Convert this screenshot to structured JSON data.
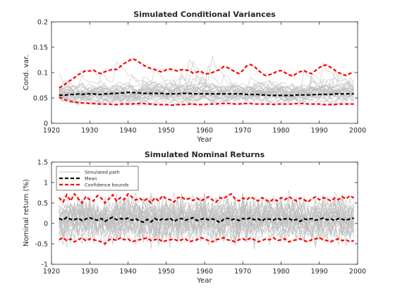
{
  "chart_data": [
    {
      "type": "line",
      "title": "Simulated Conditional Variances",
      "xlabel": "Year",
      "ylabel": "Cond. var.",
      "xlim": [
        1920,
        2000
      ],
      "ylim": [
        0,
        0.2
      ],
      "xticks": [
        1920,
        1930,
        1940,
        1950,
        1960,
        1970,
        1980,
        1990,
        2000
      ],
      "yticks": [
        0,
        0.05,
        0.1,
        0.15,
        0.2
      ],
      "ytick_labels": [
        "0",
        "0.05",
        "0.1",
        "0.15",
        "0.2"
      ],
      "grid": false,
      "x": [
        1922,
        1923,
        1924,
        1925,
        1926,
        1927,
        1928,
        1929,
        1930,
        1931,
        1932,
        1933,
        1934,
        1935,
        1936,
        1937,
        1938,
        1939,
        1940,
        1941,
        1942,
        1943,
        1944,
        1945,
        1946,
        1947,
        1948,
        1949,
        1950,
        1951,
        1952,
        1953,
        1954,
        1955,
        1956,
        1957,
        1958,
        1959,
        1960,
        1961,
        1962,
        1963,
        1964,
        1965,
        1966,
        1967,
        1968,
        1969,
        1970,
        1971,
        1972,
        1973,
        1974,
        1975,
        1976,
        1977,
        1978,
        1979,
        1980,
        1981,
        1982,
        1983,
        1984,
        1985,
        1986,
        1987,
        1988,
        1989,
        1990,
        1991,
        1992,
        1993,
        1994,
        1995,
        1996,
        1997,
        1998,
        1999
      ],
      "series": [
        {
          "role": "mean",
          "color": "#000000",
          "style": "dashed",
          "values": [
            0.056,
            0.055,
            0.056,
            0.057,
            0.057,
            0.058,
            0.057,
            0.058,
            0.058,
            0.058,
            0.057,
            0.057,
            0.058,
            0.058,
            0.059,
            0.059,
            0.06,
            0.06,
            0.061,
            0.061,
            0.06,
            0.06,
            0.059,
            0.059,
            0.059,
            0.059,
            0.059,
            0.059,
            0.058,
            0.058,
            0.058,
            0.058,
            0.059,
            0.059,
            0.059,
            0.058,
            0.058,
            0.058,
            0.058,
            0.058,
            0.058,
            0.058,
            0.058,
            0.058,
            0.058,
            0.058,
            0.058,
            0.058,
            0.058,
            0.057,
            0.057,
            0.057,
            0.057,
            0.056,
            0.056,
            0.055,
            0.055,
            0.055,
            0.055,
            0.055,
            0.055,
            0.055,
            0.056,
            0.056,
            0.056,
            0.056,
            0.056,
            0.057,
            0.057,
            0.057,
            0.057,
            0.057,
            0.058,
            0.058,
            0.058,
            0.058,
            0.058,
            0.058
          ]
        },
        {
          "role": "upper bound",
          "color": "#ff0000",
          "style": "dashed",
          "values": [
            0.07,
            0.074,
            0.08,
            0.085,
            0.09,
            0.096,
            0.1,
            0.104,
            0.103,
            0.105,
            0.1,
            0.098,
            0.102,
            0.104,
            0.107,
            0.106,
            0.112,
            0.118,
            0.122,
            0.127,
            0.125,
            0.12,
            0.115,
            0.111,
            0.108,
            0.106,
            0.103,
            0.101,
            0.106,
            0.107,
            0.105,
            0.103,
            0.106,
            0.105,
            0.104,
            0.099,
            0.101,
            0.103,
            0.097,
            0.098,
            0.1,
            0.103,
            0.106,
            0.112,
            0.11,
            0.106,
            0.101,
            0.098,
            0.104,
            0.113,
            0.116,
            0.112,
            0.105,
            0.098,
            0.094,
            0.096,
            0.098,
            0.103,
            0.104,
            0.1,
            0.096,
            0.093,
            0.098,
            0.102,
            0.104,
            0.1,
            0.098,
            0.104,
            0.11,
            0.114,
            0.115,
            0.11,
            0.105,
            0.1,
            0.097,
            0.094,
            0.098,
            0.101
          ]
        },
        {
          "role": "lower bound",
          "color": "#ff0000",
          "style": "dashed",
          "values": [
            0.052,
            0.048,
            0.045,
            0.043,
            0.042,
            0.041,
            0.04,
            0.04,
            0.039,
            0.039,
            0.038,
            0.038,
            0.038,
            0.038,
            0.037,
            0.037,
            0.038,
            0.038,
            0.038,
            0.038,
            0.039,
            0.039,
            0.039,
            0.038,
            0.038,
            0.037,
            0.037,
            0.037,
            0.037,
            0.036,
            0.036,
            0.037,
            0.037,
            0.037,
            0.038,
            0.038,
            0.037,
            0.037,
            0.037,
            0.038,
            0.038,
            0.038,
            0.039,
            0.039,
            0.039,
            0.039,
            0.038,
            0.038,
            0.039,
            0.039,
            0.039,
            0.038,
            0.038,
            0.038,
            0.038,
            0.038,
            0.037,
            0.038,
            0.038,
            0.038,
            0.038,
            0.038,
            0.039,
            0.039,
            0.039,
            0.038,
            0.038,
            0.038,
            0.038,
            0.037,
            0.037,
            0.037,
            0.037,
            0.038,
            0.038,
            0.038,
            0.038,
            0.038
          ]
        }
      ],
      "simulated_paths": {
        "count": 35,
        "color": "#c0c0c0",
        "seed": 7,
        "base": 0.058,
        "spread": 0.018,
        "floor": 0.034
      }
    },
    {
      "type": "line",
      "title": "Simulated Nominal Returns",
      "xlabel": "Year",
      "ylabel": "Nominal return (%)",
      "xlim": [
        1920,
        2000
      ],
      "ylim": [
        -1,
        1.5
      ],
      "xticks": [
        1920,
        1930,
        1940,
        1950,
        1960,
        1970,
        1980,
        1990,
        2000
      ],
      "yticks": [
        -1,
        -0.5,
        0,
        0.5,
        1,
        1.5
      ],
      "ytick_labels": [
        "-1",
        "-0.5",
        "0",
        "0.5",
        "1",
        "1.5"
      ],
      "grid": false,
      "legend": {
        "placement": "top-left",
        "entries": [
          {
            "label": "Simulated path",
            "color": "#c0c0c0",
            "style": "solid"
          },
          {
            "label": "Mean",
            "color": "#000000",
            "style": "dashed"
          },
          {
            "label": "Confidence bounds",
            "color": "#ff0000",
            "style": "dashed"
          }
        ]
      },
      "x": [
        1922,
        1923,
        1924,
        1925,
        1926,
        1927,
        1928,
        1929,
        1930,
        1931,
        1932,
        1933,
        1934,
        1935,
        1936,
        1937,
        1938,
        1939,
        1940,
        1941,
        1942,
        1943,
        1944,
        1945,
        1946,
        1947,
        1948,
        1949,
        1950,
        1951,
        1952,
        1953,
        1954,
        1955,
        1956,
        1957,
        1958,
        1959,
        1960,
        1961,
        1962,
        1963,
        1964,
        1965,
        1966,
        1967,
        1968,
        1969,
        1970,
        1971,
        1972,
        1973,
        1974,
        1975,
        1976,
        1977,
        1978,
        1979,
        1980,
        1981,
        1982,
        1983,
        1984,
        1985,
        1986,
        1987,
        1988,
        1989,
        1990,
        1991,
        1992,
        1993,
        1994,
        1995,
        1996,
        1997,
        1998,
        1999
      ],
      "series": [
        {
          "role": "mean",
          "color": "#000000",
          "style": "dashed",
          "values": [
            0.12,
            0.08,
            0.15,
            0.1,
            0.09,
            0.13,
            0.07,
            0.11,
            0.14,
            0.1,
            0.08,
            0.12,
            0.05,
            0.11,
            0.15,
            0.09,
            0.12,
            0.1,
            0.13,
            0.08,
            0.11,
            0.06,
            0.03,
            0.1,
            0.04,
            0.12,
            0.07,
            0.11,
            0.09,
            0.13,
            0.05,
            0.1,
            0.12,
            0.08,
            0.11,
            0.14,
            0.07,
            0.1,
            0.12,
            0.09,
            0.11,
            0.08,
            0.02,
            0.1,
            0.13,
            0.09,
            0.11,
            0.07,
            0.12,
            0.1,
            0.14,
            0.09,
            0.11,
            0.06,
            0.12,
            0.1,
            0.08,
            0.13,
            0.09,
            0.11,
            0.12,
            0.07,
            0.1,
            0.05,
            0.11,
            0.09,
            0.12,
            0.08,
            0.1,
            0.13,
            0.09,
            0.11,
            0.07,
            0.12,
            0.1,
            0.08,
            0.11,
            0.13
          ]
        },
        {
          "role": "upper bound",
          "color": "#ff0000",
          "style": "dashed",
          "values": [
            0.63,
            0.52,
            0.7,
            0.55,
            0.72,
            0.6,
            0.5,
            0.66,
            0.58,
            0.55,
            0.68,
            0.62,
            0.5,
            0.6,
            0.7,
            0.55,
            0.63,
            0.58,
            0.72,
            0.65,
            0.57,
            0.62,
            0.55,
            0.6,
            0.5,
            0.63,
            0.55,
            0.68,
            0.6,
            0.58,
            0.52,
            0.63,
            0.65,
            0.58,
            0.61,
            0.56,
            0.62,
            0.55,
            0.6,
            0.65,
            0.58,
            0.52,
            0.63,
            0.6,
            0.68,
            0.72,
            0.6,
            0.55,
            0.62,
            0.58,
            0.65,
            0.6,
            0.55,
            0.63,
            0.58,
            0.52,
            0.6,
            0.55,
            0.63,
            0.58,
            0.65,
            0.6,
            0.55,
            0.62,
            0.58,
            0.52,
            0.6,
            0.65,
            0.58,
            0.63,
            0.6,
            0.55,
            0.62,
            0.58,
            0.65,
            0.6,
            0.68,
            0.62
          ]
        },
        {
          "role": "lower bound",
          "color": "#ff0000",
          "style": "dashed",
          "values": [
            -0.4,
            -0.35,
            -0.42,
            -0.38,
            -0.45,
            -0.4,
            -0.35,
            -0.43,
            -0.38,
            -0.4,
            -0.42,
            -0.45,
            -0.5,
            -0.4,
            -0.38,
            -0.42,
            -0.35,
            -0.4,
            -0.38,
            -0.45,
            -0.42,
            -0.4,
            -0.38,
            -0.35,
            -0.42,
            -0.4,
            -0.38,
            -0.45,
            -0.42,
            -0.4,
            -0.38,
            -0.43,
            -0.4,
            -0.38,
            -0.45,
            -0.42,
            -0.4,
            -0.35,
            -0.38,
            -0.42,
            -0.45,
            -0.4,
            -0.38,
            -0.35,
            -0.4,
            -0.42,
            -0.45,
            -0.4,
            -0.38,
            -0.42,
            -0.35,
            -0.4,
            -0.45,
            -0.42,
            -0.38,
            -0.4,
            -0.35,
            -0.42,
            -0.4,
            -0.38,
            -0.45,
            -0.42,
            -0.4,
            -0.38,
            -0.42,
            -0.45,
            -0.4,
            -0.38,
            -0.35,
            -0.4,
            -0.42,
            -0.45,
            -0.4,
            -0.38,
            -0.42,
            -0.4,
            -0.45,
            -0.42
          ]
        }
      ],
      "simulated_paths": {
        "count": 35,
        "color": "#c0c0c0",
        "seed": 13,
        "base": 0.1,
        "spread": 0.32,
        "floor": -0.95
      }
    }
  ]
}
